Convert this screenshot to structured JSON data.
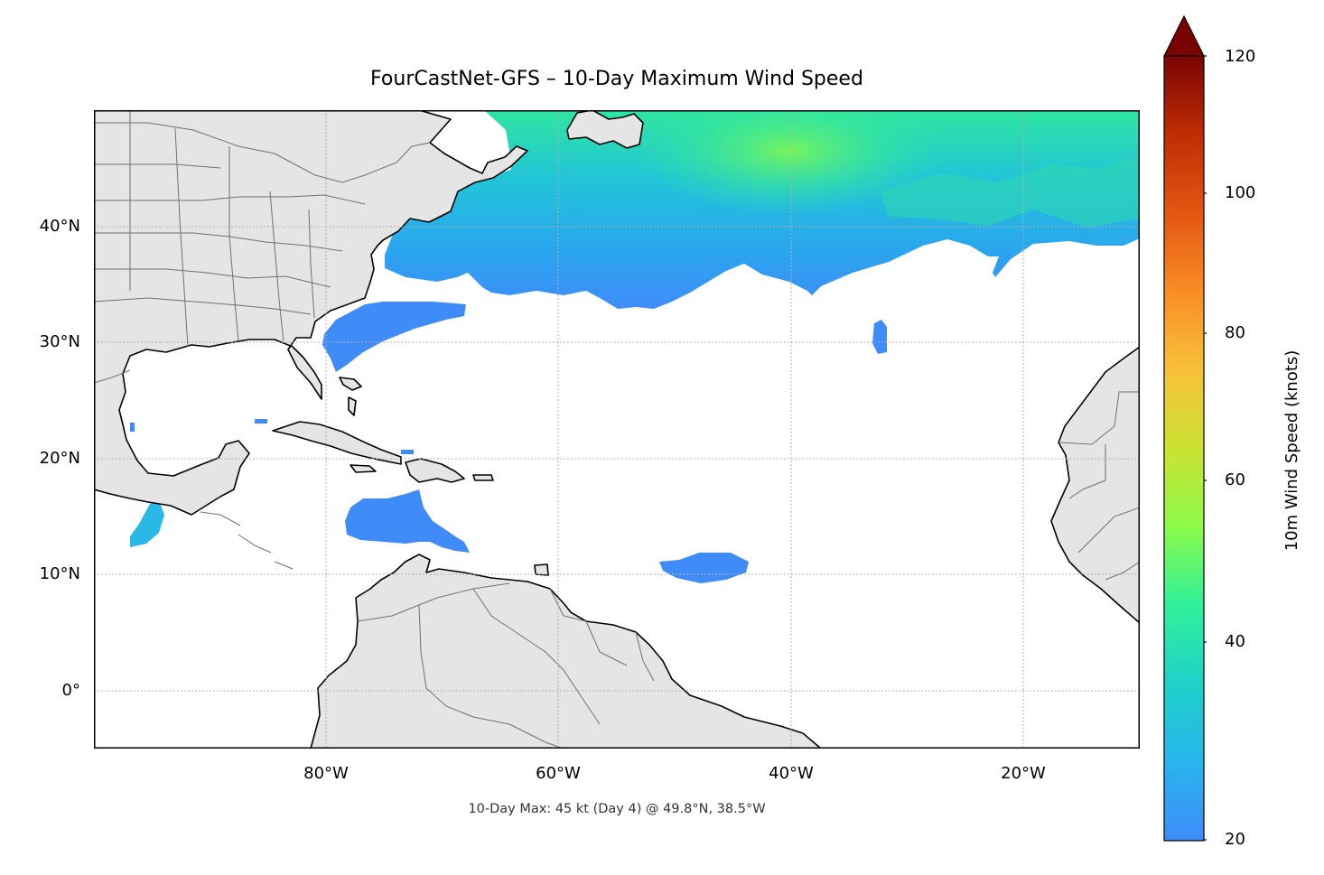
{
  "map": {
    "title": "FourCastNet-GFS – 10-Day Maximum Wind Speed",
    "footer": "10-Day Max: 45 kt (Day 4) @ 49.8°N, 38.5°W",
    "lat_labels": [
      "40°N",
      "30°N",
      "20°N",
      "10°N",
      "0°"
    ],
    "lon_labels": [
      "80°W",
      "60°W",
      "40°W",
      "20°W"
    ],
    "extent": {
      "lon_min": -100,
      "lon_max": -10,
      "lat_min": -5,
      "lat_max": 50
    },
    "gridlines": true,
    "land_color": "#e5e5e5",
    "coast_color": "#000000",
    "border_color": "#707070",
    "max_point": {
      "lat": 49.8,
      "lon": -38.5,
      "speed_kt": 45,
      "day": 4
    }
  },
  "colorbar": {
    "label": "10m Wind Speed (knots)",
    "min": 20,
    "max": 120,
    "extend": "max",
    "ticks": [
      "120",
      "100",
      "80",
      "60",
      "40",
      "20"
    ],
    "colormap": "turbo",
    "colors": [
      "#3f8cf9",
      "#27b5ec",
      "#1fd1c9",
      "#2ff19a",
      "#8cfa4a",
      "#cce232",
      "#f8c13a",
      "#f98d26",
      "#e35612",
      "#bf2d05",
      "#911003",
      "#7a0403"
    ]
  }
}
